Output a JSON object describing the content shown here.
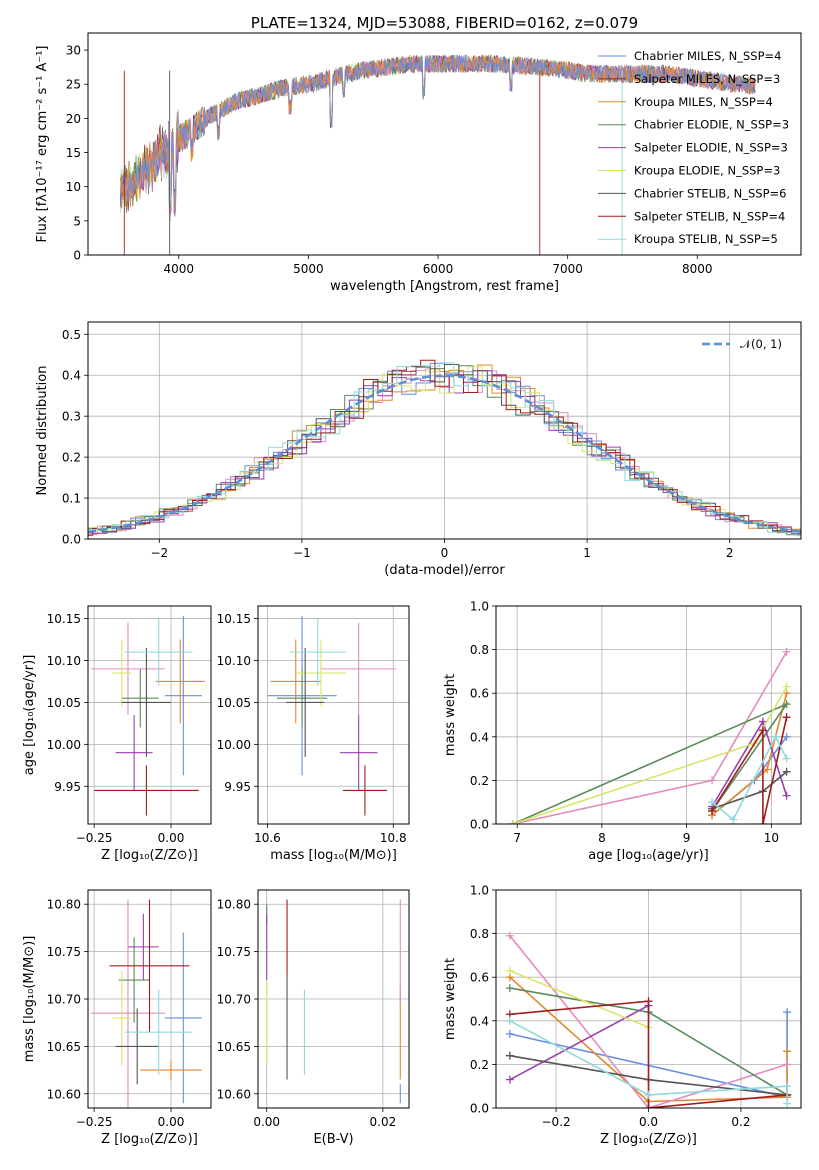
{
  "colors": [
    "#6a8ee0",
    "#e3882e",
    "#e48bbf",
    "#5a8a5a",
    "#9a3fb0",
    "#d7e66a",
    "#545454",
    "#a01c1c",
    "#8fd8dc"
  ],
  "chart_data": [
    {
      "type": "line",
      "title": "PLATE=1324, MJD=53088, FIBERID=0162, z=0.079",
      "xlabel": "wavelength [Angstrom, rest frame]",
      "ylabel": "Flux [fλ10⁻¹⁷ erg cm⁻² s⁻¹ A⁻¹]",
      "xlim": [
        3300,
        8800
      ],
      "ylim": [
        0,
        32.5
      ],
      "xticks": [
        4000,
        5000,
        6000,
        7000,
        8000
      ],
      "yticks": [
        0,
        5,
        10,
        15,
        20,
        25,
        30
      ],
      "grid": false,
      "legend": "upper-right",
      "legend_entries": [
        "Chabrier MILES, N_SSP=4",
        "Salpeter MILES, N_SSP=3",
        "Kroupa MILES, N_SSP=4",
        "Chabrier ELODIE, N_SSP=3",
        "Salpeter ELODIE, N_SSP=3",
        "Kroupa ELODIE, N_SSP=3",
        "Chabrier STELIB, N_SSP=6",
        "Salpeter STELIB, N_SSP=4",
        "Kroupa STELIB, N_SSP=5"
      ],
      "legend_color_index": [
        0,
        7,
        1,
        3,
        4,
        5,
        6,
        7,
        8
      ],
      "spectrum_envelope": {
        "x": [
          3550,
          3650,
          3750,
          3850,
          3950,
          4050,
          4150,
          4250,
          4350,
          4450,
          4550,
          4650,
          4800,
          5000,
          5200,
          5400,
          5600,
          5800,
          6000,
          6200,
          6400,
          6600,
          6800,
          7000,
          7200,
          7400,
          7600,
          7800,
          8000,
          8200,
          8400
        ],
        "y": [
          10,
          11,
          13,
          15,
          16.5,
          17.5,
          19,
          20.5,
          21.5,
          22.5,
          23,
          23.5,
          24.5,
          25,
          26,
          27,
          27.5,
          28,
          28,
          28,
          28,
          27.8,
          27.5,
          27,
          26.5,
          26.5,
          26.5,
          26.5,
          25.8,
          25.3,
          24.8
        ]
      }
    },
    {
      "type": "bar",
      "subtype": "histogram",
      "xlabel": "(data-model)/error",
      "ylabel": "Normed distribution",
      "xlim": [
        -2.5,
        2.5
      ],
      "ylim": [
        0,
        0.53
      ],
      "xticks": [
        -2,
        -1,
        0,
        1,
        2
      ],
      "yticks": [
        0.0,
        0.1,
        0.2,
        0.3,
        0.4,
        0.5
      ],
      "grid": true,
      "legend": "upper-right",
      "legend_entries": [
        "𝒩(0, 1)"
      ],
      "reference_curve": {
        "name": "𝒩(0, 1)",
        "mean": 0,
        "sigma": 1
      },
      "bin_width": 0.1
    },
    {
      "type": "scatter",
      "subtype": "errorbar",
      "xlabel": "Z [log₁₀(Z/Z⊙)]",
      "ylabel": "age  [log₁₀(age/yr)]",
      "xlim": [
        -0.27,
        0.13
      ],
      "ylim": [
        9.905,
        10.165
      ],
      "xticks": [
        -0.25,
        0.0
      ],
      "yticks": [
        9.95,
        10.0,
        10.05,
        10.1,
        10.15
      ],
      "grid": true,
      "points": [
        {
          "c": 0,
          "x": 0.04,
          "xerr": 0.06,
          "y": 10.058,
          "yerr": 0.095
        },
        {
          "c": 1,
          "x": 0.03,
          "xerr": 0.08,
          "y": 10.075,
          "yerr": 0.05
        },
        {
          "c": 2,
          "x": -0.14,
          "xerr": 0.12,
          "y": 10.09,
          "yerr": 0.055
        },
        {
          "c": 3,
          "x": -0.1,
          "xerr": 0.06,
          "y": 10.055,
          "yerr": 0.035
        },
        {
          "c": 4,
          "x": -0.12,
          "xerr": 0.06,
          "y": 9.99,
          "yerr": 0.045
        },
        {
          "c": 5,
          "x": -0.16,
          "xerr": 0.03,
          "y": 10.085,
          "yerr": 0.04
        },
        {
          "c": 6,
          "x": -0.08,
          "xerr": 0.08,
          "y": 10.05,
          "yerr": 0.065
        },
        {
          "c": 7,
          "x": -0.08,
          "xerr": 0.17,
          "y": 9.945,
          "yerr": 0.03
        },
        {
          "c": 8,
          "x": -0.04,
          "xerr": 0.11,
          "y": 10.11,
          "yerr": 0.04
        }
      ]
    },
    {
      "type": "scatter",
      "subtype": "errorbar",
      "xlabel": "mass [log₁₀(M/M⊙)]",
      "ylabel": "",
      "xlim": [
        10.585,
        10.825
      ],
      "ylim": [
        9.905,
        10.165
      ],
      "xticks": [
        10.6,
        10.8
      ],
      "yticks": [
        9.95,
        10.0,
        10.05,
        10.1,
        10.15
      ],
      "grid": true,
      "points": [
        {
          "c": 0,
          "x": 10.655,
          "xerr": 0.055,
          "y": 10.058,
          "yerr": 0.095
        },
        {
          "c": 1,
          "x": 10.645,
          "xerr": 0.04,
          "y": 10.075,
          "yerr": 0.05
        },
        {
          "c": 2,
          "x": 10.745,
          "xerr": 0.06,
          "y": 10.09,
          "yerr": 0.055
        },
        {
          "c": 3,
          "x": 10.655,
          "xerr": 0.04,
          "y": 10.055,
          "yerr": 0.035
        },
        {
          "c": 4,
          "x": 10.745,
          "xerr": 0.03,
          "y": 9.99,
          "yerr": 0.045
        },
        {
          "c": 5,
          "x": 10.685,
          "xerr": 0.04,
          "y": 10.085,
          "yerr": 0.04
        },
        {
          "c": 6,
          "x": 10.66,
          "xerr": 0.03,
          "y": 10.05,
          "yerr": 0.065
        },
        {
          "c": 7,
          "x": 10.755,
          "xerr": 0.035,
          "y": 9.945,
          "yerr": 0.03
        },
        {
          "c": 8,
          "x": 10.68,
          "xerr": 0.045,
          "y": 10.11,
          "yerr": 0.04
        }
      ]
    },
    {
      "type": "line",
      "xlabel": "age  [log₁₀(age/yr)]",
      "ylabel": "mass weight",
      "xlim": [
        6.75,
        10.35
      ],
      "ylim": [
        0,
        1.0
      ],
      "xticks": [
        7,
        8,
        9,
        10
      ],
      "yticks": [
        0.0,
        0.2,
        0.4,
        0.6,
        0.8,
        1.0
      ],
      "grid": true,
      "series": [
        {
          "c": 0,
          "x": [
            9.3,
            9.8,
            10.18
          ],
          "y": [
            0.04,
            0.2,
            0.4
          ]
        },
        {
          "c": 1,
          "x": [
            9.3,
            9.95,
            10.18
          ],
          "y": [
            0.04,
            0.25,
            0.6
          ]
        },
        {
          "c": 2,
          "x": [
            6.95,
            9.3,
            10.18
          ],
          "y": [
            0.0,
            0.2,
            0.79
          ]
        },
        {
          "c": 3,
          "x": [
            6.95,
            10.18,
            9.3
          ],
          "y": [
            0.0,
            0.55,
            0.06
          ]
        },
        {
          "c": 4,
          "x": [
            9.3,
            9.9,
            10.18
          ],
          "y": [
            0.08,
            0.47,
            0.13
          ]
        },
        {
          "c": 5,
          "x": [
            6.95,
            9.8,
            10.18
          ],
          "y": [
            0.0,
            0.37,
            0.63
          ]
        },
        {
          "c": 6,
          "x": [
            9.3,
            9.9,
            10.18
          ],
          "y": [
            0.07,
            0.15,
            0.24
          ]
        },
        {
          "c": 7,
          "x": [
            9.3,
            9.9,
            9.9,
            10.18
          ],
          "y": [
            0.06,
            0.43,
            0.0,
            0.49
          ]
        },
        {
          "c": 8,
          "x": [
            9.3,
            9.55,
            10.05,
            10.18
          ],
          "y": [
            0.1,
            0.02,
            0.4,
            0.3
          ]
        }
      ]
    },
    {
      "type": "scatter",
      "subtype": "errorbar",
      "xlabel": "Z [log₁₀(Z/Z⊙)]",
      "ylabel": "mass [log₁₀(M/M⊙)]",
      "xlim": [
        -0.27,
        0.13
      ],
      "ylim": [
        10.585,
        10.815
      ],
      "xticks": [
        -0.25,
        0.0
      ],
      "yticks": [
        10.6,
        10.65,
        10.7,
        10.75,
        10.8
      ],
      "grid": true,
      "points": [
        {
          "c": 0,
          "x": 0.04,
          "xerr": 0.06,
          "y": 10.68,
          "yerr": 0.09
        },
        {
          "c": 1,
          "x": 0.0,
          "xerr": 0.1,
          "y": 10.625,
          "yerr": 0.01
        },
        {
          "c": 2,
          "x": -0.14,
          "xerr": 0.12,
          "y": 10.685,
          "yerr": 0.12
        },
        {
          "c": 3,
          "x": -0.12,
          "xerr": 0.05,
          "y": 10.72,
          "yerr": 0.045
        },
        {
          "c": 4,
          "x": -0.09,
          "xerr": 0.05,
          "y": 10.755,
          "yerr": 0.035
        },
        {
          "c": 5,
          "x": -0.16,
          "xerr": 0.03,
          "y": 10.68,
          "yerr": 0.05
        },
        {
          "c": 6,
          "x": -0.11,
          "xerr": 0.07,
          "y": 10.65,
          "yerr": 0.04
        },
        {
          "c": 7,
          "x": -0.07,
          "xerr": 0.13,
          "y": 10.735,
          "yerr": 0.07
        },
        {
          "c": 8,
          "x": -0.04,
          "xerr": 0.11,
          "y": 10.665,
          "yerr": 0.045
        }
      ]
    },
    {
      "type": "scatter",
      "subtype": "errorbar",
      "xlabel": "E(B-V)",
      "ylabel": "",
      "xlim": [
        -0.0015,
        0.0245
      ],
      "ylim": [
        10.585,
        10.815
      ],
      "xticks": [
        0.0,
        0.02
      ],
      "yticks": [
        10.6,
        10.65,
        10.7,
        10.75,
        10.8
      ],
      "grid": true,
      "points": [
        {
          "c": 0,
          "x": 0.023,
          "xerr": 0,
          "y": 10.6,
          "yerr": 0.01
        },
        {
          "c": 1,
          "x": 0.023,
          "xerr": 0,
          "y": 10.665,
          "yerr": 0.05
        },
        {
          "c": 2,
          "x": 0.023,
          "xerr": 0,
          "y": 10.75,
          "yerr": 0.055
        },
        {
          "c": 3,
          "x": 0.0,
          "xerr": 0,
          "y": 10.79,
          "yerr": 0.01
        },
        {
          "c": 4,
          "x": 0.0,
          "xerr": 0,
          "y": 10.755,
          "yerr": 0.035
        },
        {
          "c": 5,
          "x": 0.0,
          "xerr": 0,
          "y": 10.675,
          "yerr": 0.045
        },
        {
          "c": 6,
          "x": 0.0035,
          "xerr": 0,
          "y": 10.67,
          "yerr": 0.055
        },
        {
          "c": 7,
          "x": 0.0035,
          "xerr": 0,
          "y": 10.765,
          "yerr": 0.04
        },
        {
          "c": 8,
          "x": 0.0065,
          "xerr": 0,
          "y": 10.665,
          "yerr": 0.045
        }
      ]
    },
    {
      "type": "line",
      "xlabel": "Z [log₁₀(Z/Z⊙)]",
      "ylabel": "mass weight",
      "xlim": [
        -0.33,
        0.33
      ],
      "ylim": [
        0,
        1.0
      ],
      "xticks": [
        -0.2,
        0.0,
        0.2
      ],
      "yticks": [
        0.0,
        0.2,
        0.4,
        0.6,
        0.8,
        1.0
      ],
      "grid": true,
      "series": [
        {
          "c": 0,
          "x": [
            -0.3,
            0.3,
            0.3
          ],
          "y": [
            0.34,
            0.05,
            0.44
          ]
        },
        {
          "c": 1,
          "x": [
            -0.3,
            0.0,
            0.3,
            0.3
          ],
          "y": [
            0.6,
            0.03,
            0.05,
            0.26
          ]
        },
        {
          "c": 2,
          "x": [
            -0.3,
            0.0,
            0.3
          ],
          "y": [
            0.79,
            0.0,
            0.2
          ]
        },
        {
          "c": 3,
          "x": [
            -0.3,
            0.0,
            0.3
          ],
          "y": [
            0.55,
            0.44,
            0.06
          ]
        },
        {
          "c": 4,
          "x": [
            -0.3,
            0.0
          ],
          "y": [
            0.13,
            0.47
          ]
        },
        {
          "c": 5,
          "x": [
            -0.3,
            0.0
          ],
          "y": [
            0.63,
            0.37
          ]
        },
        {
          "c": 6,
          "x": [
            -0.3,
            0.0,
            0.3
          ],
          "y": [
            0.24,
            0.13,
            0.06
          ]
        },
        {
          "c": 7,
          "x": [
            -0.3,
            0.0,
            0.0,
            0.3
          ],
          "y": [
            0.43,
            0.49,
            0.0,
            0.06
          ]
        },
        {
          "c": 8,
          "x": [
            -0.3,
            0.0,
            0.3,
            0.3
          ],
          "y": [
            0.4,
            0.06,
            0.1,
            0.02
          ]
        }
      ]
    }
  ]
}
